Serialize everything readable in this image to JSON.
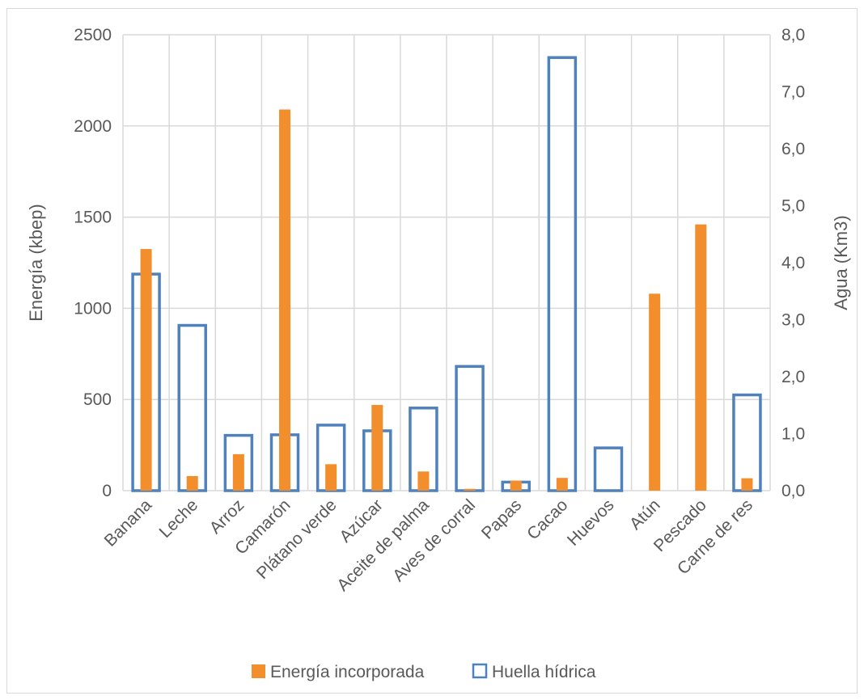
{
  "chart_data": {
    "type": "bar",
    "categories": [
      "Banana",
      "Leche",
      "Arroz",
      "Camarón",
      "Plátano verde",
      "Azúcar",
      "Aceite de palma",
      "Aves de corral",
      "Papas",
      "Cacao",
      "Huevos",
      "Atún",
      "Pescado",
      "Carne de res"
    ],
    "series": [
      {
        "name": "Energía incorporada",
        "axis": "left",
        "style": "filled",
        "color": "#F28E2B",
        "values": [
          1325,
          80,
          200,
          2090,
          145,
          470,
          105,
          10,
          55,
          70,
          0,
          1080,
          1460,
          68
        ]
      },
      {
        "name": "Huella hídrica",
        "axis": "right",
        "style": "outline",
        "color": "#4F81BD",
        "values": [
          3.8,
          2.9,
          0.97,
          0.98,
          1.15,
          1.05,
          1.45,
          2.18,
          0.15,
          7.6,
          0.75,
          0.0,
          0.0,
          1.68
        ]
      }
    ],
    "xlabel": "",
    "ylabel": "Energía (kbep)",
    "y2label": "Agua (Km3)",
    "ylim": [
      0,
      2500
    ],
    "y2lim": [
      0,
      8
    ],
    "yticks": [
      "0",
      "500",
      "1000",
      "1500",
      "2000",
      "2500"
    ],
    "y2ticks": [
      "0,0",
      "1,0",
      "2,0",
      "3,0",
      "4,0",
      "5,0",
      "6,0",
      "7,0",
      "8,0"
    ],
    "grid": true,
    "legend": "bottom"
  }
}
